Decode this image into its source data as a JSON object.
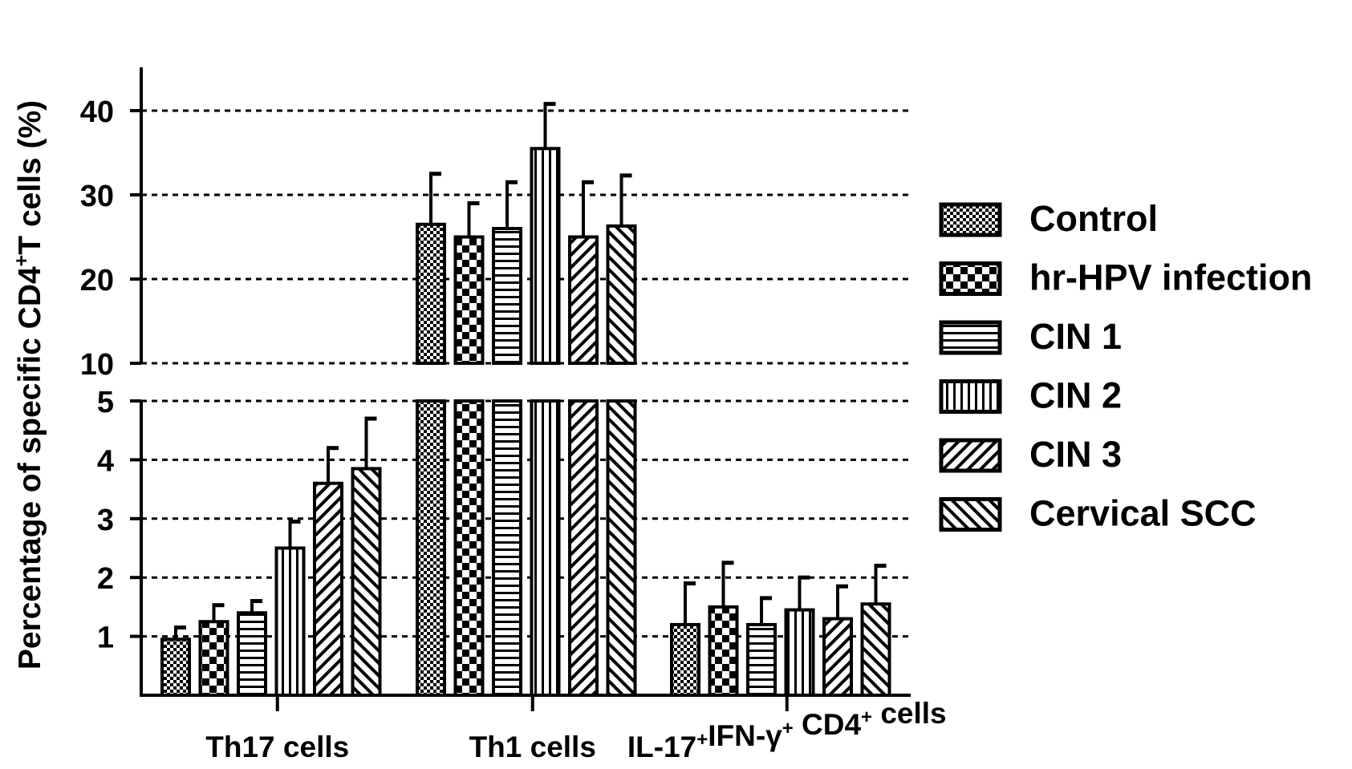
{
  "chart_data": {
    "type": "bar",
    "ylabel": "Percentage of specific CD4+T cells (%)",
    "ylabel_parts": [
      "Percentage of specific CD4",
      "+",
      "T cells (%)"
    ],
    "xlabel": "",
    "categories": [
      "Th17 cells",
      "Th1 cells",
      "IL-17+IFN-γ+ CD4+ cells"
    ],
    "category_label_parts": [
      [
        {
          "t": "Th17 cells",
          "sup": false
        }
      ],
      [
        {
          "t": "Th1 cells",
          "sup": false
        }
      ],
      [
        {
          "t": "IL-17",
          "sup": false
        },
        {
          "t": "+",
          "sup": true
        },
        {
          "t": "IFN-γ",
          "sup": false
        },
        {
          "t": "+",
          "sup": true
        },
        {
          "t": " CD4",
          "sup": false
        },
        {
          "t": "+",
          "sup": true
        },
        {
          "t": " cells",
          "sup": false
        }
      ]
    ],
    "y_axis_break": {
      "lower_range": [
        0,
        5
      ],
      "upper_range": [
        10,
        45
      ]
    },
    "yticks_lower": [
      1,
      2,
      3,
      4,
      5
    ],
    "yticks_upper": [
      10,
      20,
      30,
      40
    ],
    "grid": "horizontal dashed",
    "legend_position": "right",
    "series": [
      {
        "name": "Control",
        "pattern": "checker-fine",
        "values": [
          0.95,
          26.5,
          1.2
        ],
        "errors": [
          0.2,
          6.0,
          0.7
        ]
      },
      {
        "name": "hr-HPV infection",
        "pattern": "checker-coarse",
        "values": [
          1.25,
          25.0,
          1.5
        ],
        "errors": [
          0.28,
          4.0,
          0.75
        ]
      },
      {
        "name": "CIN 1",
        "pattern": "horizontal-lines",
        "values": [
          1.4,
          26.0,
          1.2
        ],
        "errors": [
          0.2,
          5.5,
          0.45
        ]
      },
      {
        "name": "CIN 2",
        "pattern": "vertical-lines",
        "values": [
          2.5,
          35.5,
          1.45
        ],
        "errors": [
          0.45,
          5.3,
          0.55
        ]
      },
      {
        "name": "CIN 3",
        "pattern": "diagonal-forward",
        "values": [
          3.6,
          25.0,
          1.3
        ],
        "errors": [
          0.6,
          6.5,
          0.55
        ]
      },
      {
        "name": "Cervical SCC",
        "pattern": "diagonal-back",
        "values": [
          3.85,
          26.3,
          1.55
        ],
        "errors": [
          0.85,
          6.0,
          0.65
        ]
      }
    ]
  }
}
